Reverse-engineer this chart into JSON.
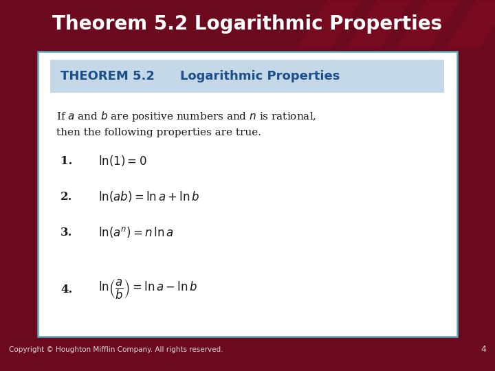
{
  "title": "Theorem 5.2 Logarithmic Properties",
  "title_bg_color": "#6B0A1E",
  "title_text_color": "#FFFFFF",
  "title_fontsize": 20,
  "main_bg_color": "#FFFFFF",
  "outer_bg_color": "#6B0A1E",
  "theorem_header_bg": "#C5D8E8",
  "theorem_header_color": "#1A4F8A",
  "box_border_color": "#5AACBA",
  "copyright_text": "Copyright © Houghton Mifflin Company. All rights reserved.",
  "copyright_fontsize": 7.5,
  "page_number": "4",
  "text_color": "#1A1A1A",
  "intro_fontsize": 11,
  "formula_fontsize": 12,
  "num_fontsize": 12
}
